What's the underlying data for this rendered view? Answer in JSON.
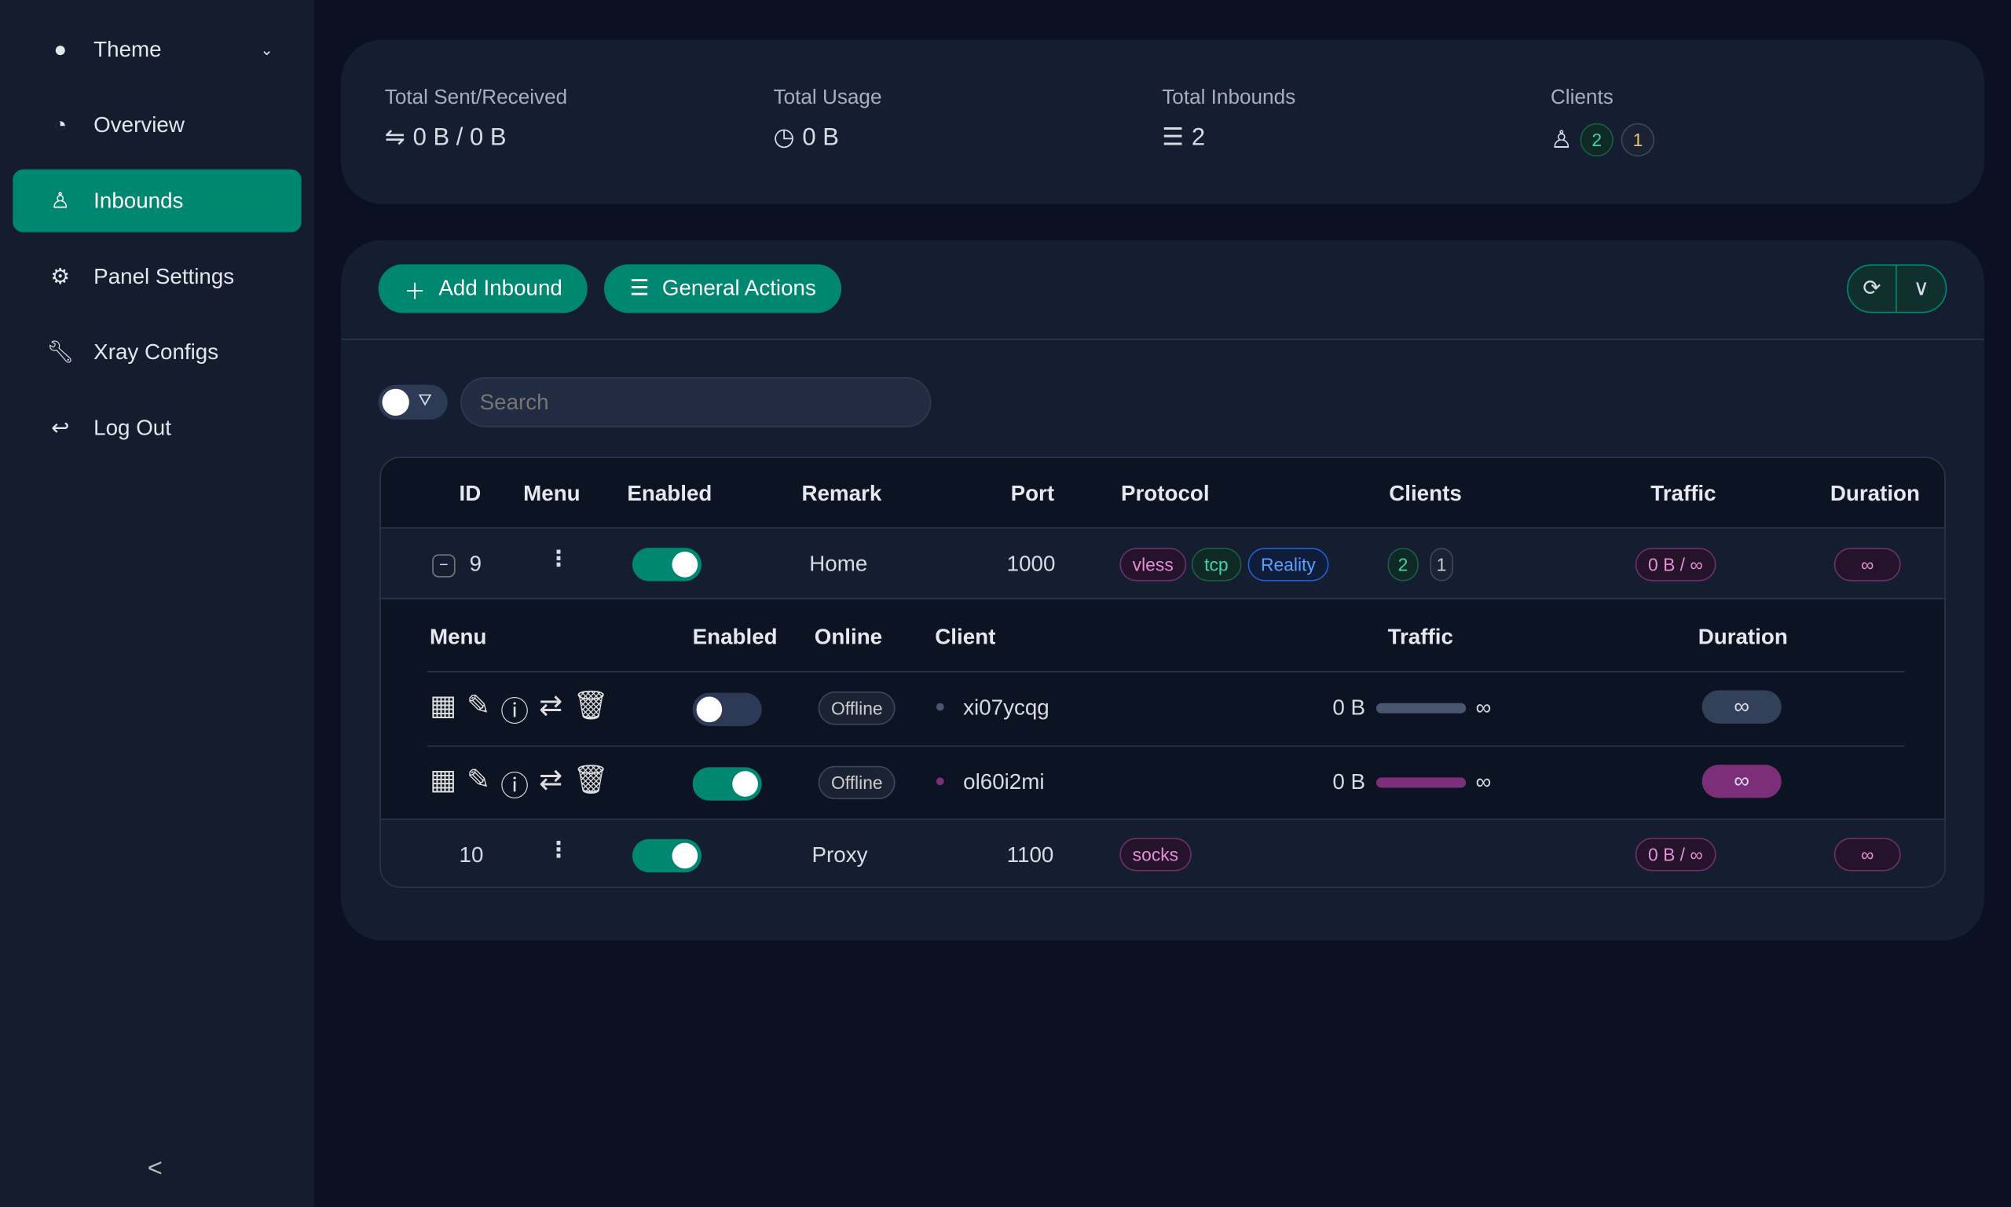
{
  "sidebar": {
    "items": [
      {
        "label": "Theme",
        "icon": "bulb-icon"
      },
      {
        "label": "Overview",
        "icon": "dashboard-icon"
      },
      {
        "label": "Inbounds",
        "icon": "user-icon",
        "active": true
      },
      {
        "label": "Panel Settings",
        "icon": "gear-icon"
      },
      {
        "label": "Xray Configs",
        "icon": "wrench-icon"
      },
      {
        "label": "Log Out",
        "icon": "logout-icon"
      }
    ],
    "collapse": "<"
  },
  "stats": {
    "sent_label": "Total Sent/Received",
    "sent_value": "0 B / 0 B",
    "usage_label": "Total Usage",
    "usage_value": "0 B",
    "inbounds_label": "Total Inbounds",
    "inbounds_value": "2",
    "clients_label": "Clients",
    "clients_active": "2",
    "clients_other": "1"
  },
  "toolbar": {
    "add": "Add Inbound",
    "general": "General Actions"
  },
  "search": {
    "placeholder": "Search"
  },
  "table": {
    "headers": [
      "ID",
      "Menu",
      "Enabled",
      "Remark",
      "Port",
      "Protocol",
      "Clients",
      "Traffic",
      "Duration"
    ],
    "rows": [
      {
        "id": "9",
        "enabled": true,
        "remark": "Home",
        "port": "1000",
        "protocol": [
          "vless",
          "tcp",
          "Reality"
        ],
        "clients_active": "2",
        "clients_other": "1",
        "traffic": "0 B / ∞",
        "duration": "∞"
      },
      {
        "id": "10",
        "enabled": true,
        "remark": "Proxy",
        "port": "1100",
        "protocol": [
          "socks"
        ],
        "traffic": "0 B / ∞",
        "duration": "∞"
      }
    ]
  },
  "clients": {
    "headers": [
      "Menu",
      "Enabled",
      "Online",
      "Client",
      "Traffic",
      "Duration"
    ],
    "rows": [
      {
        "enabled": false,
        "online": "Offline",
        "client": "xi07ycqg",
        "traffic": "0 B",
        "limit": "∞",
        "duration": "∞"
      },
      {
        "enabled": true,
        "online": "Offline",
        "client": "ol60i2mi",
        "traffic": "0 B",
        "limit": "∞",
        "duration": "∞"
      }
    ]
  },
  "colors": {
    "accent": "#008771",
    "background": "#0b1120",
    "card": "#151e31",
    "client_enabled": "#7a2f78"
  }
}
